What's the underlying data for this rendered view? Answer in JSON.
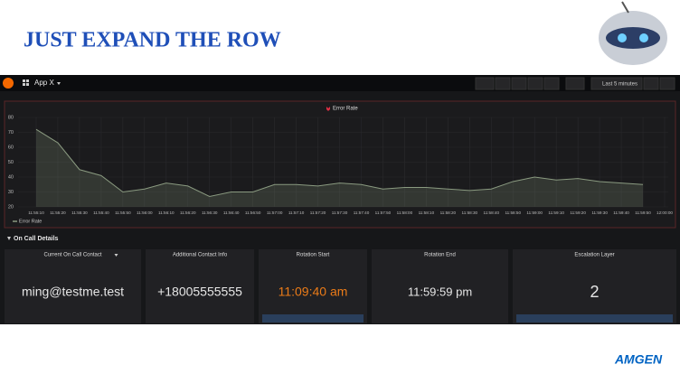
{
  "slide": {
    "title": "JUST EXPAND THE ROW",
    "logo": "AMGEN"
  },
  "dashboard": {
    "name": "App X",
    "time_range": "Last 5 minutes",
    "row_title": "On Call Details",
    "panels": [
      {
        "title": "Current On Call Contact",
        "value": "ming@testme.test"
      },
      {
        "title": "Additional Contact Info",
        "value": "+18005555555"
      },
      {
        "title": "Rotation Start",
        "value": "11:09:40 am"
      },
      {
        "title": "Rotation End",
        "value": "11:59:59 pm"
      },
      {
        "title": "Escalation Layer",
        "value": "2"
      }
    ]
  },
  "chart_data": {
    "type": "area",
    "title": "Error Rate",
    "categories": [
      "11:55:10",
      "11:55:20",
      "11:55:30",
      "11:55:40",
      "11:55:50",
      "11:56:00",
      "11:56:10",
      "11:56:20",
      "11:56:30",
      "11:56:40",
      "11:56:50",
      "11:57:00",
      "11:57:10",
      "11:57:20",
      "11:57:30",
      "11:57:40",
      "11:57:50",
      "11:58:00",
      "11:58:10",
      "11:58:20",
      "11:58:30",
      "11:58:40",
      "11:58:50",
      "11:59:00",
      "11:59:10",
      "11:59:20",
      "11:59:30",
      "11:59:40",
      "11:59:50",
      "12:00:00"
    ],
    "series": [
      {
        "name": "Error Rate",
        "color": "#8a9a80",
        "values": [
          72,
          63,
          45,
          41,
          30,
          32,
          36,
          34,
          27,
          30,
          30,
          35,
          35,
          34,
          36,
          35,
          32,
          33,
          33,
          32,
          31,
          32,
          37,
          40,
          38,
          39,
          37,
          36,
          35,
          null
        ]
      }
    ],
    "ylim": [
      20,
      80
    ],
    "yticks": [
      20,
      30,
      40,
      50,
      60,
      70,
      80
    ],
    "grid": true
  }
}
